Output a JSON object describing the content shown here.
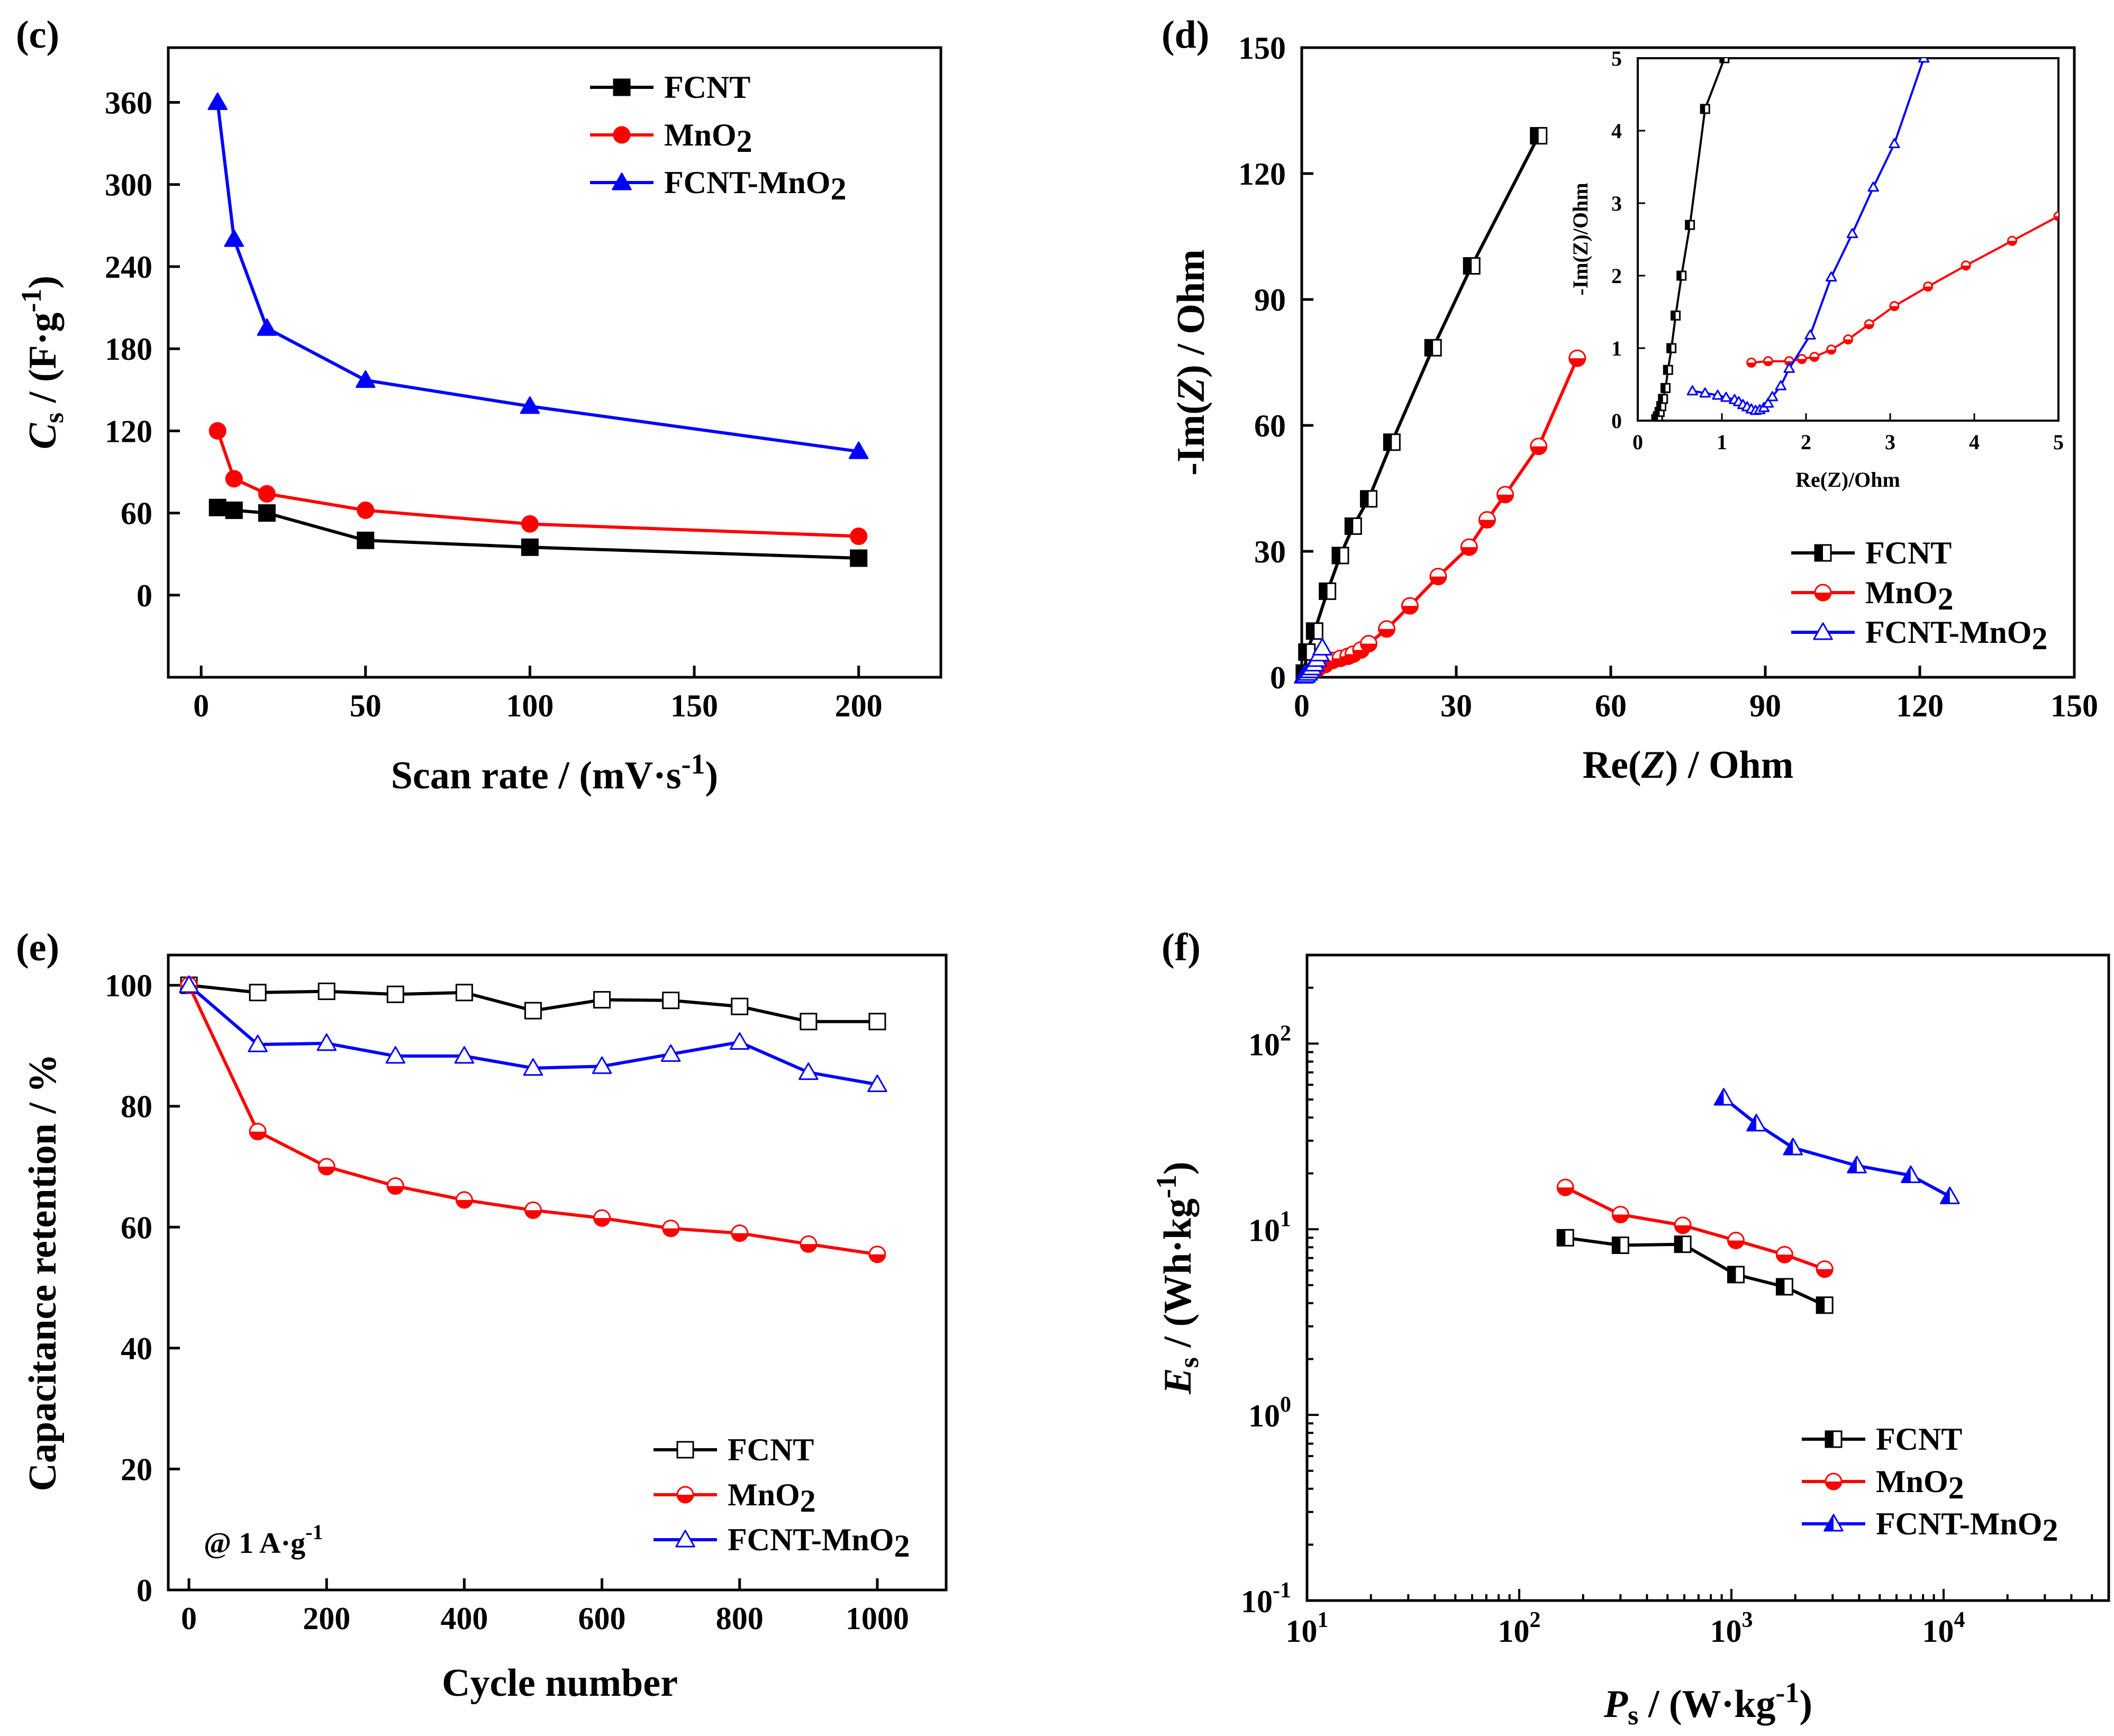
{
  "colors": {
    "FCNT": "#000000",
    "MnO2": "#ff0000",
    "FCNT-MnO2": "#0000ff"
  },
  "chart_data": [
    {
      "panel": "(c)",
      "type": "line",
      "xlabel": "Scan rate / (mV·s-1)",
      "ylabel": "Cs / (F·g-1)",
      "xlim": [
        -10,
        225
      ],
      "ylim": [
        -60,
        400
      ],
      "xticks": [
        0,
        50,
        100,
        150,
        200
      ],
      "yticks": [
        0,
        60,
        120,
        180,
        240,
        300,
        360
      ],
      "legend": "top-right",
      "series": [
        {
          "name": "FCNT",
          "label": "FCNT",
          "marker": "square-filled",
          "x": [
            5,
            10,
            20,
            50,
            100,
            200
          ],
          "y": [
            64,
            62,
            60,
            40,
            35,
            27
          ]
        },
        {
          "name": "MnO2",
          "label": "MnO2",
          "marker": "circle-filled",
          "x": [
            5,
            10,
            20,
            50,
            100,
            200
          ],
          "y": [
            120,
            85,
            74,
            62,
            52,
            43
          ]
        },
        {
          "name": "FCNT-MnO2",
          "label": "FCNT-MnO2",
          "marker": "triangle-filled",
          "x": [
            5,
            10,
            20,
            50,
            100,
            200
          ],
          "y": [
            360,
            260,
            195,
            157,
            138,
            105
          ]
        }
      ]
    },
    {
      "panel": "(d)",
      "type": "scatter",
      "xlabel": "Re(Z) / Ohm",
      "ylabel": "-Im(Z) / Ohm",
      "xlim": [
        0,
        150
      ],
      "ylim": [
        0,
        150
      ],
      "xticks": [
        0,
        30,
        60,
        90,
        120,
        150
      ],
      "yticks": [
        0,
        30,
        60,
        90,
        120,
        150
      ],
      "legend": "bottom-right",
      "series": [
        {
          "name": "FCNT",
          "label": "FCNT",
          "marker": "square-half",
          "x": [
            0.5,
            1.0,
            2.5,
            5,
            7.5,
            10,
            13,
            17.5,
            25.5,
            33,
            46
          ],
          "y": [
            1,
            6,
            11,
            20.5,
            29,
            36,
            42.5,
            56,
            78.5,
            98,
            129
          ]
        },
        {
          "name": "MnO2",
          "label": "MnO2",
          "marker": "circle-half",
          "x": [
            3,
            4.5,
            6,
            7.5,
            9,
            10,
            11.5,
            13,
            16.5,
            21,
            26.5,
            32.5,
            36,
            39.5,
            46,
            53.5
          ],
          "y": [
            2,
            3,
            4,
            4.5,
            5,
            5.5,
            6.5,
            8,
            11.5,
            17,
            24,
            31,
            37.5,
            43.5,
            55,
            76
          ]
        },
        {
          "name": "FCNT-MnO2",
          "label": "FCNT-MnO2",
          "marker": "triangle-open",
          "x": [
            0.4,
            0.8,
            1.2,
            1.6,
            2.0,
            2.5,
            3.0,
            3.5,
            4.0
          ],
          "y": [
            0.3,
            0.5,
            1,
            1.6,
            2.3,
            3.2,
            4.3,
            5.6,
            7
          ]
        }
      ],
      "inset": {
        "xlabel": "Re(Z)/Ohm",
        "ylabel": "-Im(Z)/Ohm",
        "xlim": [
          0,
          5
        ],
        "ylim": [
          0,
          5
        ],
        "xticks": [
          0,
          1,
          2,
          3,
          4,
          5
        ],
        "yticks": [
          0,
          1,
          2,
          3,
          4,
          5
        ],
        "series": [
          {
            "name": "FCNT",
            "x": [
              0.22,
              0.24,
              0.26,
              0.28,
              0.3,
              0.33,
              0.36,
              0.4,
              0.45,
              0.52,
              0.62,
              0.8,
              1.03
            ],
            "y": [
              0.02,
              0.06,
              0.12,
              0.2,
              0.3,
              0.45,
              0.7,
              1.0,
              1.45,
              2.0,
              2.7,
              4.3,
              5.0
            ]
          },
          {
            "name": "MnO2",
            "x": [
              1.35,
              1.55,
              1.8,
              1.95,
              2.1,
              2.3,
              2.5,
              2.75,
              3.05,
              3.45,
              3.9,
              4.45,
              5.0
            ],
            "y": [
              0.8,
              0.82,
              0.82,
              0.85,
              0.88,
              0.98,
              1.12,
              1.33,
              1.58,
              1.85,
              2.14,
              2.48,
              2.82
            ]
          },
          {
            "name": "FCNT-MnO2",
            "x": [
              0.65,
              0.8,
              0.95,
              1.05,
              1.15,
              1.2,
              1.25,
              1.3,
              1.35,
              1.4,
              1.45,
              1.5,
              1.55,
              1.6,
              1.7,
              1.8,
              2.05,
              2.3,
              2.55,
              2.8,
              3.05,
              3.4
            ],
            "y": [
              0.41,
              0.38,
              0.35,
              0.32,
              0.29,
              0.26,
              0.22,
              0.19,
              0.16,
              0.14,
              0.15,
              0.18,
              0.24,
              0.33,
              0.48,
              0.72,
              1.18,
              1.98,
              2.58,
              3.22,
              3.82,
              5.0
            ]
          }
        ]
      }
    },
    {
      "panel": "(e)",
      "type": "line",
      "xlabel": "Cycle number",
      "ylabel": "Capacitance retention / %",
      "xlim": [
        -30,
        1100
      ],
      "ylim": [
        0,
        105
      ],
      "xticks": [
        0,
        200,
        400,
        600,
        800,
        1000
      ],
      "yticks": [
        0,
        20,
        40,
        60,
        80,
        100
      ],
      "legend": "bottom-right",
      "annotation": "@ 1 A·g-1",
      "series": [
        {
          "name": "FCNT",
          "label": "FCNT",
          "marker": "square-open",
          "x": [
            0,
            100,
            200,
            300,
            400,
            500,
            600,
            700,
            800,
            900,
            1000
          ],
          "y": [
            100,
            98.8,
            99,
            98.5,
            98.8,
            95.8,
            97.6,
            97.5,
            96.5,
            94,
            94
          ]
        },
        {
          "name": "MnO2",
          "label": "MnO2",
          "marker": "circle-half",
          "x": [
            0,
            100,
            200,
            300,
            400,
            500,
            600,
            700,
            800,
            900,
            1000
          ],
          "y": [
            100,
            75.8,
            70,
            66.8,
            64.5,
            62.8,
            61.5,
            59.8,
            59,
            57.2,
            55.5
          ]
        },
        {
          "name": "FCNT-MnO2",
          "label": "FCNT-MnO2",
          "marker": "triangle-open",
          "x": [
            0,
            100,
            200,
            300,
            400,
            500,
            600,
            700,
            800,
            900,
            1000
          ],
          "y": [
            100,
            90.2,
            90.4,
            88.3,
            88.3,
            86.3,
            86.6,
            88.6,
            90.6,
            85.6,
            83.6
          ]
        }
      ]
    },
    {
      "panel": "(f)",
      "type": "line",
      "scale": "log-log",
      "xlabel": "Ps / (W·kg-1)",
      "ylabel": "Es / (Wh·kg-1)",
      "xlim": [
        10,
        60000
      ],
      "ylim": [
        0.1,
        300
      ],
      "xticks": [
        10,
        100,
        1000,
        10000
      ],
      "yticks": [
        0.1,
        1,
        10,
        100
      ],
      "legend": "bottom-right",
      "series": [
        {
          "name": "FCNT",
          "label": "FCNT",
          "marker": "square-half",
          "x": [
            165,
            300,
            590,
            1050,
            1780,
            2750
          ],
          "y": [
            9.0,
            8.2,
            8.3,
            5.7,
            4.9,
            3.9
          ]
        },
        {
          "name": "MnO2",
          "label": "MnO2",
          "marker": "circle-half",
          "x": [
            165,
            300,
            590,
            1050,
            1780,
            2750
          ],
          "y": [
            16.8,
            12.0,
            10.5,
            8.7,
            7.3,
            6.1
          ]
        },
        {
          "name": "FCNT-MnO2",
          "label": "FCNT-MnO2",
          "marker": "triangle-half",
          "x": [
            920,
            1310,
            1950,
            3900,
            7000,
            10700
          ],
          "y": [
            51,
            37,
            27.5,
            22,
            19.5,
            15
          ]
        }
      ]
    }
  ]
}
